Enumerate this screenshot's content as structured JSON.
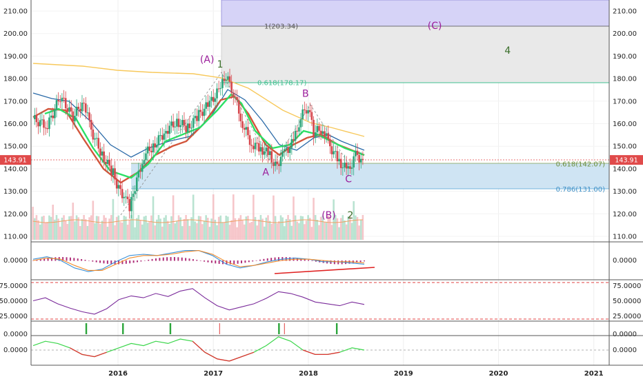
{
  "chart_data": [
    {
      "type": "candlestick",
      "panel": "price",
      "price_axis_ticks": [
        "110.00",
        "120.00",
        "130.00",
        "140.00",
        "150.00",
        "160.00",
        "170.00",
        "180.00",
        "190.00",
        "200.00",
        "210.00"
      ],
      "ylim": [
        106,
        216
      ],
      "last_price": "143.91",
      "xlim": [
        "2015-02-01",
        "2021-03-01"
      ],
      "x_ticks": [
        "2016",
        "2017",
        "2018",
        "2019",
        "2020",
        "2021"
      ],
      "series_close_weekly": [
        {
          "date": "2015-02-08",
          "close": 162
        },
        {
          "date": "2015-04-05",
          "close": 159
        },
        {
          "date": "2015-05-24",
          "close": 172
        },
        {
          "date": "2015-07-12",
          "close": 163
        },
        {
          "date": "2015-08-23",
          "close": 170
        },
        {
          "date": "2015-09-20",
          "close": 157
        },
        {
          "date": "2015-11-01",
          "close": 146
        },
        {
          "date": "2015-12-13",
          "close": 138
        },
        {
          "date": "2016-01-03",
          "close": 131
        },
        {
          "date": "2016-01-31",
          "close": 127
        },
        {
          "date": "2016-02-14",
          "close": 122
        },
        {
          "date": "2016-03-06",
          "close": 132
        },
        {
          "date": "2016-04-10",
          "close": 146
        },
        {
          "date": "2016-05-22",
          "close": 151
        },
        {
          "date": "2016-07-03",
          "close": 157
        },
        {
          "date": "2016-08-14",
          "close": 161
        },
        {
          "date": "2016-09-25",
          "close": 158
        },
        {
          "date": "2016-11-06",
          "close": 164
        },
        {
          "date": "2016-12-18",
          "close": 169
        },
        {
          "date": "2017-01-29",
          "close": 176
        },
        {
          "date": "2017-02-19",
          "close": 181
        },
        {
          "date": "2017-03-19",
          "close": 174
        },
        {
          "date": "2017-04-23",
          "close": 160
        },
        {
          "date": "2017-05-28",
          "close": 151
        },
        {
          "date": "2017-07-02",
          "close": 149
        },
        {
          "date": "2017-08-06",
          "close": 146
        },
        {
          "date": "2017-08-27",
          "close": 141
        },
        {
          "date": "2017-10-01",
          "close": 147
        },
        {
          "date": "2017-11-05",
          "close": 152
        },
        {
          "date": "2017-12-03",
          "close": 163
        },
        {
          "date": "2017-12-31",
          "close": 168
        },
        {
          "date": "2018-01-21",
          "close": 156
        },
        {
          "date": "2018-02-25",
          "close": 158
        },
        {
          "date": "2018-03-25",
          "close": 150
        },
        {
          "date": "2018-04-29",
          "close": 143
        },
        {
          "date": "2018-06-03",
          "close": 139
        },
        {
          "date": "2018-07-01",
          "close": 146
        },
        {
          "date": "2018-07-29",
          "close": 143.91
        }
      ],
      "moving_averages": [
        "fast MA (red)",
        "green/lime MA",
        "orange-red MA",
        "blue MA",
        "yellow long MA"
      ],
      "fibonacci_levels": [
        {
          "label": "1(203.34)",
          "value": 203.34
        },
        {
          "label": "0.618(178.17)",
          "value": 178.17
        },
        {
          "label": "0.618(142.07)",
          "value": 142.07
        },
        {
          "label": "0.786(131.00)",
          "value": 131.0
        }
      ],
      "wave_labels": [
        {
          "text": "(A)",
          "date": "2016-12-08",
          "price": 187
        },
        {
          "text": "1",
          "date": "2017-01-27",
          "price": 185
        },
        {
          "text": "B",
          "date": "2017-12-21",
          "price": 172
        },
        {
          "text": "A",
          "date": "2017-07-21",
          "price": 137
        },
        {
          "text": "C",
          "date": "2018-06-04",
          "price": 134
        },
        {
          "text": "(B)",
          "date": "2018-03-20",
          "price": 118
        },
        {
          "text": "2",
          "date": "2018-06-11",
          "price": 118
        },
        {
          "text": "(C)",
          "date": "2019-05-01",
          "price": 202
        },
        {
          "text": "4",
          "date": "2020-02-05",
          "price": 191
        }
      ]
    },
    {
      "type": "line",
      "panel": "macd",
      "y_ticks": [
        "0.0000"
      ],
      "series": [
        {
          "values": [
            1,
            3,
            0,
            -6,
            -9,
            -7,
            -1,
            4,
            5,
            4,
            6,
            8,
            8,
            4,
            -3,
            -6,
            -4,
            -1,
            1,
            2,
            1,
            -1,
            -1,
            -2,
            -3
          ]
        },
        {
          "values": [
            0,
            2,
            1,
            -4,
            -8,
            -8,
            -3,
            2,
            4,
            4,
            5,
            7,
            8,
            5,
            -1,
            -5,
            -4,
            -2,
            0,
            1,
            1,
            0,
            -1,
            -1,
            -2
          ]
        }
      ]
    },
    {
      "type": "line",
      "panel": "rsi",
      "y_ticks": [
        "75.0000",
        "50.0000",
        "25.0000"
      ],
      "ylim": [
        15,
        85
      ],
      "bands": [
        80,
        20
      ],
      "series": [
        {
          "values": [
            50,
            55,
            45,
            38,
            32,
            28,
            37,
            52,
            58,
            55,
            62,
            57,
            66,
            70,
            55,
            42,
            35,
            40,
            45,
            54,
            65,
            62,
            56,
            48,
            45,
            42,
            48,
            44
          ]
        }
      ]
    },
    {
      "type": "bar",
      "panel": "signals",
      "y_ticks": [
        "0.0000"
      ],
      "signal_dates": [
        "2015-09-01",
        "2016-01-20",
        "2016-07-20",
        "2017-09-10",
        "2018-04-20"
      ]
    },
    {
      "type": "line",
      "panel": "oscillator",
      "y_ticks": [
        "0.0000"
      ],
      "series": [
        {
          "values": [
            2,
            4,
            3,
            1,
            -2,
            -3,
            -1,
            1,
            3,
            2,
            4,
            3,
            5,
            4,
            -1,
            -4,
            -5,
            -3,
            -1,
            2,
            6,
            4,
            0,
            -2,
            -2,
            -1,
            1,
            0
          ]
        }
      ]
    }
  ]
}
